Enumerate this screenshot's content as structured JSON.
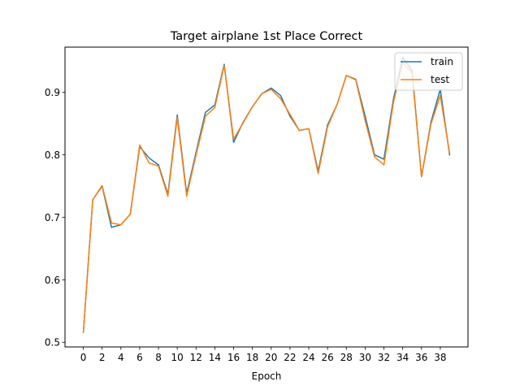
{
  "chart_data": {
    "type": "line",
    "title": "Target airplane 1st Place Correct",
    "xlabel": "Epoch",
    "ylabel": "",
    "xlim": [
      -1.95,
      40.95
    ],
    "ylim": [
      0.4925,
      0.9725
    ],
    "xticks": [
      0,
      2,
      4,
      6,
      8,
      10,
      12,
      14,
      16,
      18,
      20,
      22,
      24,
      26,
      28,
      30,
      32,
      34,
      36,
      38
    ],
    "yticks": [
      0.5,
      0.6,
      0.7,
      0.8,
      0.9
    ],
    "grid": false,
    "legend_position": "top-right",
    "x": [
      0,
      1,
      2,
      3,
      4,
      5,
      6,
      7,
      8,
      9,
      10,
      11,
      12,
      13,
      14,
      15,
      16,
      17,
      18,
      19,
      20,
      21,
      22,
      23,
      24,
      25,
      26,
      27,
      28,
      29,
      30,
      31,
      32,
      33,
      34,
      35,
      36,
      37,
      38,
      39
    ],
    "series": [
      {
        "name": "train",
        "color": "#1f77b4",
        "values": [
          0.515,
          0.728,
          0.75,
          0.684,
          0.688,
          0.705,
          0.813,
          0.795,
          0.784,
          0.737,
          0.864,
          0.738,
          0.804,
          0.868,
          0.88,
          0.945,
          0.82,
          0.852,
          0.877,
          0.898,
          0.907,
          0.895,
          0.862,
          0.839,
          0.842,
          0.774,
          0.848,
          0.88,
          0.927,
          0.921,
          0.862,
          0.8,
          0.793,
          0.888,
          0.956,
          0.935,
          0.765,
          0.852,
          0.905,
          0.799
        ]
      },
      {
        "name": "test",
        "color": "#ff7f0e",
        "values": [
          0.515,
          0.728,
          0.751,
          0.691,
          0.688,
          0.705,
          0.816,
          0.787,
          0.782,
          0.734,
          0.86,
          0.734,
          0.8,
          0.862,
          0.876,
          0.943,
          0.825,
          0.851,
          0.877,
          0.898,
          0.905,
          0.89,
          0.865,
          0.839,
          0.842,
          0.77,
          0.845,
          0.88,
          0.927,
          0.92,
          0.855,
          0.797,
          0.784,
          0.883,
          0.948,
          0.931,
          0.765,
          0.849,
          0.895,
          0.802
        ]
      }
    ]
  }
}
